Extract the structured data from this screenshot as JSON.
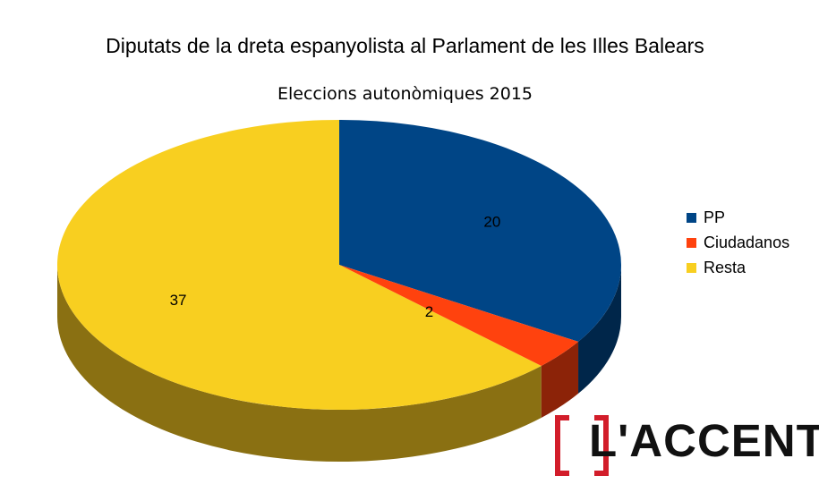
{
  "chart_data": {
    "type": "pie",
    "title": "Diputats de la dreta espanyolista al Parlament de les Illes Balears",
    "subtitle": "Eleccions autonòmiques 2015",
    "categories": [
      "PP",
      "Ciudadanos",
      "Resta"
    ],
    "values": [
      20,
      2,
      37
    ],
    "data_labels": [
      "20",
      "2",
      "37"
    ],
    "colors": [
      "#004586",
      "#ff420e",
      "#f8cf20"
    ],
    "side_colors": [
      "#00264a",
      "#8c2308",
      "#8a7012"
    ],
    "legend_position": "right",
    "style": "3d"
  },
  "logo": {
    "text": "L'ACCENT",
    "accent_color": "#d21d2a"
  }
}
